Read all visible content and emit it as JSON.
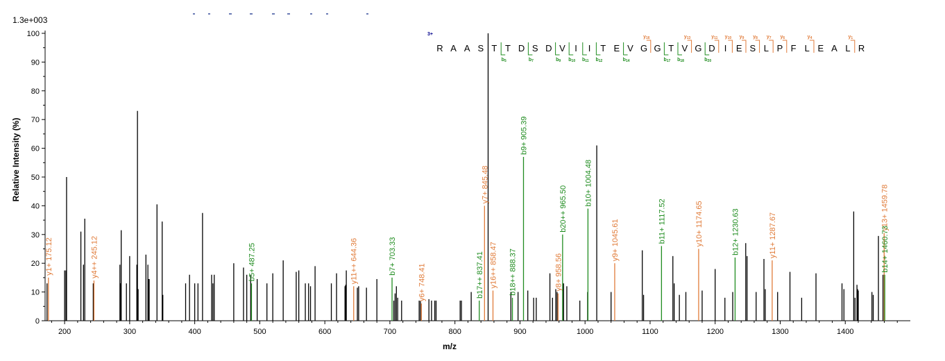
{
  "chart_data": {
    "type": "bar",
    "scale_label": "1.3e+003",
    "xlabel": "m/z",
    "ylabel": "Relative   Intensity (%)",
    "xlim": [
      170,
      1500
    ],
    "ylim": [
      0,
      100
    ],
    "x_ticks": [
      200,
      300,
      400,
      500,
      600,
      700,
      800,
      900,
      1000,
      1100,
      1200,
      1300,
      1400
    ],
    "y_ticks": [
      0,
      10,
      20,
      30,
      40,
      50,
      60,
      70,
      80,
      90,
      100
    ],
    "colors": {
      "unassigned": "#000000",
      "y_ion": "#e07b39",
      "b_ion": "#1f8c1f",
      "charge": "#00008b"
    },
    "unassigned_peaks": [
      [
        173,
        13
      ],
      [
        200,
        17.5
      ],
      [
        202,
        17.5
      ],
      [
        203,
        50
      ],
      [
        225,
        31
      ],
      [
        229,
        19.5
      ],
      [
        231,
        35.5
      ],
      [
        244,
        13
      ],
      [
        285,
        19.5
      ],
      [
        286,
        13
      ],
      [
        287,
        31.5
      ],
      [
        295,
        13
      ],
      [
        300,
        22.5
      ],
      [
        311,
        19.5
      ],
      [
        312,
        73
      ],
      [
        313,
        11
      ],
      [
        325,
        23
      ],
      [
        328,
        19.5
      ],
      [
        329,
        14.5
      ],
      [
        330,
        14.5
      ],
      [
        342,
        40.5
      ],
      [
        350,
        34.5
      ],
      [
        351,
        9
      ],
      [
        386,
        13
      ],
      [
        392,
        16
      ],
      [
        400,
        13
      ],
      [
        405,
        13
      ],
      [
        412,
        37.5
      ],
      [
        426,
        16
      ],
      [
        428,
        13
      ],
      [
        430,
        16
      ],
      [
        460,
        20
      ],
      [
        475,
        18.5
      ],
      [
        480,
        16
      ],
      [
        486,
        16
      ],
      [
        496,
        14.5
      ],
      [
        511,
        13
      ],
      [
        520,
        16.5
      ],
      [
        536,
        21
      ],
      [
        556,
        17
      ],
      [
        560,
        17.5
      ],
      [
        570,
        13
      ],
      [
        575,
        13
      ],
      [
        578,
        12
      ],
      [
        585,
        19
      ],
      [
        610,
        13
      ],
      [
        618,
        16.5
      ],
      [
        631,
        12
      ],
      [
        632,
        12.5
      ],
      [
        633,
        17.5
      ],
      [
        650,
        11.5
      ],
      [
        652,
        12
      ],
      [
        664,
        11.5
      ],
      [
        680,
        14.5
      ],
      [
        706,
        7
      ],
      [
        708,
        9.5
      ],
      [
        710,
        12
      ],
      [
        712,
        8
      ],
      [
        718,
        7
      ],
      [
        745,
        7
      ],
      [
        747,
        7
      ],
      [
        760,
        7.5
      ],
      [
        764,
        7
      ],
      [
        769,
        7
      ],
      [
        771,
        7
      ],
      [
        808,
        7
      ],
      [
        810,
        7
      ],
      [
        825,
        10
      ],
      [
        851,
        100
      ],
      [
        886,
        10
      ],
      [
        897,
        10
      ],
      [
        912,
        10.5
      ],
      [
        921,
        8
      ],
      [
        925,
        8
      ],
      [
        946,
        16.5
      ],
      [
        950,
        8
      ],
      [
        955,
        11
      ],
      [
        957,
        10
      ],
      [
        967,
        13
      ],
      [
        972,
        12
      ],
      [
        992,
        7
      ],
      [
        1004,
        10
      ],
      [
        1018,
        61
      ],
      [
        1040,
        10
      ],
      [
        1088,
        24.5
      ],
      [
        1090,
        9
      ],
      [
        1135,
        22.5
      ],
      [
        1137,
        13
      ],
      [
        1145,
        9
      ],
      [
        1155,
        10
      ],
      [
        1180,
        10.5
      ],
      [
        1200,
        18
      ],
      [
        1215,
        8
      ],
      [
        1227,
        10
      ],
      [
        1247,
        27
      ],
      [
        1249,
        22.5
      ],
      [
        1263,
        10
      ],
      [
        1275,
        21.5
      ],
      [
        1277,
        11
      ],
      [
        1296,
        10
      ],
      [
        1315,
        17
      ],
      [
        1333,
        8
      ],
      [
        1355,
        16.5
      ],
      [
        1395,
        13
      ],
      [
        1398,
        11
      ],
      [
        1413,
        38
      ],
      [
        1415,
        8
      ],
      [
        1418,
        12.5
      ],
      [
        1419,
        11
      ],
      [
        1420,
        10.5
      ],
      [
        1441,
        10
      ],
      [
        1443,
        9
      ],
      [
        1451,
        29.5
      ],
      [
        1458,
        16
      ]
    ],
    "annotated_peaks": [
      {
        "x": 175.12,
        "y": 15,
        "ion": "y",
        "label": "y1+ 175.12"
      },
      {
        "x": 245.12,
        "y": 14,
        "ion": "y",
        "label": "y4++ 245.12"
      },
      {
        "x": 487.25,
        "y": 13,
        "ion": "b",
        "label": "b5+ 487.25"
      },
      {
        "x": 644.36,
        "y": 12,
        "ion": "y",
        "label": "y11++ 644.36"
      },
      {
        "x": 703.33,
        "y": 15,
        "ion": "b",
        "label": "b7+ 703.33"
      },
      {
        "x": 748.41,
        "y": 6,
        "ion": "y",
        "label": "y6+ 748.41"
      },
      {
        "x": 837.41,
        "y": 7,
        "ion": "b",
        "label": "b17++ 837.41"
      },
      {
        "x": 845.48,
        "y": 40,
        "ion": "y",
        "label": "y7+ 845.48"
      },
      {
        "x": 858.47,
        "y": 10.5,
        "ion": "y",
        "label": "y16++ 858.47"
      },
      {
        "x": 888.37,
        "y": 8,
        "ion": "b",
        "label": "b18++ 888.37"
      },
      {
        "x": 905.39,
        "y": 57,
        "ion": "b",
        "label": "b9+ 905.39"
      },
      {
        "x": 958.56,
        "y": 9.5,
        "ion": "y",
        "label": "y8+ 958.56"
      },
      {
        "x": 965.5,
        "y": 30,
        "ion": "b",
        "label": "b20++ 965.50"
      },
      {
        "x": 1004.48,
        "y": 39,
        "ion": "b",
        "label": "b10+ 1004.48"
      },
      {
        "x": 1045.61,
        "y": 20,
        "ion": "y",
        "label": "y9+ 1045.61"
      },
      {
        "x": 1117.52,
        "y": 26,
        "ion": "b",
        "label": "b11+ 1117.52"
      },
      {
        "x": 1174.65,
        "y": 25,
        "ion": "y",
        "label": "y10+ 1174.65"
      },
      {
        "x": 1230.63,
        "y": 22,
        "ion": "b",
        "label": "b12+ 1230.63"
      },
      {
        "x": 1287.67,
        "y": 21,
        "ion": "y",
        "label": "y11+ 1287.67"
      },
      {
        "x": 1459.78,
        "y": 30.5,
        "ion": "y",
        "label": "y13+ 1459.78"
      },
      {
        "x": 1460.73,
        "y": 16,
        "ion": "b",
        "label": "b14+ 1460.73"
      }
    ],
    "peptide": {
      "charge": "3+",
      "sequence": [
        "R",
        "A",
        "A",
        "S",
        "T",
        "T",
        "D",
        "S",
        "D",
        "V",
        "I",
        "I",
        "T",
        "E",
        "V",
        "G",
        "G",
        "T",
        "V",
        "G",
        "D",
        "I",
        "E",
        "S",
        "L",
        "P",
        "F",
        "L",
        "E",
        "A",
        "L",
        "R"
      ],
      "y_fragments": [
        {
          "after": 16,
          "label": "y",
          "sub": "16"
        },
        {
          "after": 19,
          "label": "y",
          "sub": "13"
        },
        {
          "after": 21,
          "label": "y",
          "sub": "11"
        },
        {
          "after": 22,
          "label": "y",
          "sub": "10"
        },
        {
          "after": 23,
          "label": "y",
          "sub": "9"
        },
        {
          "after": 24,
          "label": "y",
          "sub": "8"
        },
        {
          "after": 25,
          "label": "y",
          "sub": "7"
        },
        {
          "after": 26,
          "label": "y",
          "sub": "6"
        },
        {
          "after": 28,
          "label": "y",
          "sub": "4"
        },
        {
          "after": 31,
          "label": "y",
          "sub": "1"
        }
      ],
      "b_fragments": [
        {
          "after": 5,
          "label": "b",
          "sub": "5"
        },
        {
          "after": 7,
          "label": "b",
          "sub": "7"
        },
        {
          "after": 9,
          "label": "b",
          "sub": "9"
        },
        {
          "after": 10,
          "label": "b",
          "sub": "10"
        },
        {
          "after": 11,
          "label": "b",
          "sub": "11"
        },
        {
          "after": 12,
          "label": "b",
          "sub": "12"
        },
        {
          "after": 14,
          "label": "b",
          "sub": "14"
        },
        {
          "after": 17,
          "label": "b",
          "sub": "17"
        },
        {
          "after": 18,
          "label": "b",
          "sub": "18"
        },
        {
          "after": 20,
          "label": "b",
          "sub": "20"
        }
      ]
    }
  }
}
